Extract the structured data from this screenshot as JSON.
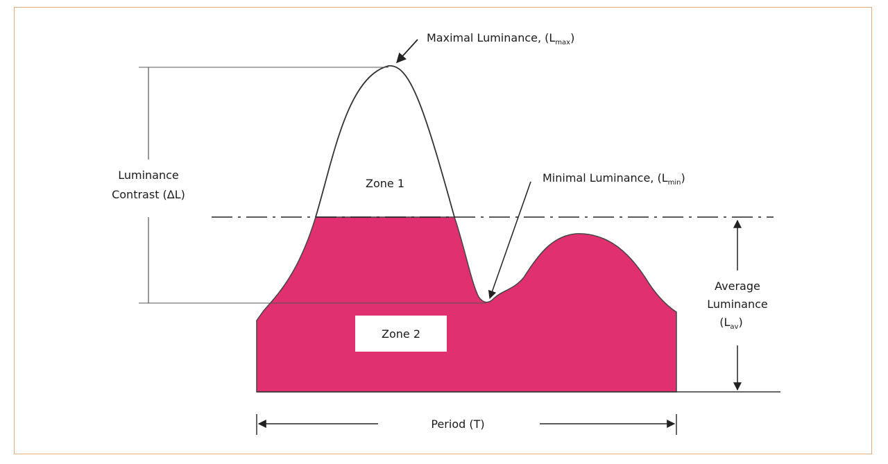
{
  "labels": {
    "max_luminance": "Maximal Luminance, (L",
    "max_sub": "max",
    "min_luminance": "Minimal Luminance, (L",
    "min_sub": "min",
    "contrast_line1": "Luminance",
    "contrast_line2": "Contrast (ΔL)",
    "zone1": "Zone 1",
    "zone2": "Zone 2",
    "average_line1": "Average",
    "average_line2": "Luminance",
    "average_line3": "(L",
    "average_sub": "av",
    "period": "Period (T)",
    "close_paren": ")"
  },
  "colors": {
    "fill": "#e1306f",
    "stroke": "#333333",
    "frame": "#e8a87c"
  }
}
